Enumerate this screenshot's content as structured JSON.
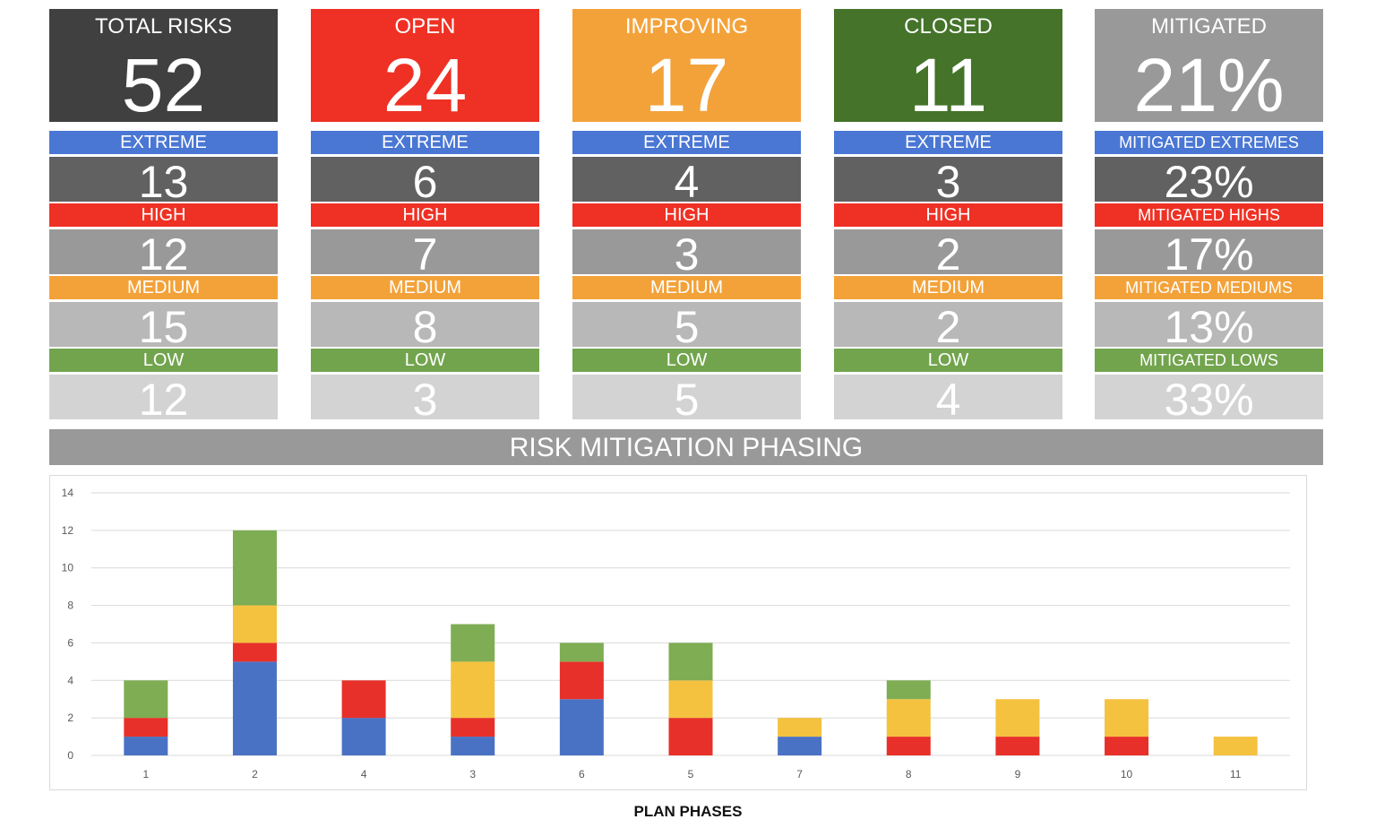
{
  "colors": {
    "dark": "#404040",
    "red": "#ee3124",
    "orange": "#f3a23a",
    "green": "#447329",
    "gray": "#999999",
    "blue": "#4a77d4",
    "band_red": "#ee3124",
    "band_orange": "#f3a23a",
    "band_green": "#72a44e",
    "num1": "#616161",
    "num2": "#999999",
    "num3": "#b8b8b8",
    "num4": "#d3d3d3"
  },
  "cards": [
    {
      "title": "TOTAL RISKS",
      "value": "52",
      "rows": [
        {
          "label": "EXTREME",
          "value": "13"
        },
        {
          "label": "HIGH",
          "value": "12"
        },
        {
          "label": "MEDIUM",
          "value": "15"
        },
        {
          "label": "LOW",
          "value": "12"
        }
      ]
    },
    {
      "title": "OPEN",
      "value": "24",
      "rows": [
        {
          "label": "EXTREME",
          "value": "6"
        },
        {
          "label": "HIGH",
          "value": "7"
        },
        {
          "label": "MEDIUM",
          "value": "8"
        },
        {
          "label": "LOW",
          "value": "3"
        }
      ]
    },
    {
      "title": "IMPROVING",
      "value": "17",
      "rows": [
        {
          "label": "EXTREME",
          "value": "4"
        },
        {
          "label": "HIGH",
          "value": "3"
        },
        {
          "label": "MEDIUM",
          "value": "5"
        },
        {
          "label": "LOW",
          "value": "5"
        }
      ]
    },
    {
      "title": "CLOSED",
      "value": "11",
      "rows": [
        {
          "label": "EXTREME",
          "value": "3"
        },
        {
          "label": "HIGH",
          "value": "2"
        },
        {
          "label": "MEDIUM",
          "value": "2"
        },
        {
          "label": "LOW",
          "value": "4"
        }
      ]
    },
    {
      "title": "MITIGATED",
      "value": "21%",
      "rows": [
        {
          "label": "MITIGATED EXTREMES",
          "value": "23%"
        },
        {
          "label": "MITIGATED HIGHS",
          "value": "17%"
        },
        {
          "label": "MITIGATED MEDIUMS",
          "value": "13%"
        },
        {
          "label": "MITIGATED LOWS",
          "value": "33%"
        }
      ]
    }
  ],
  "phasing_title": "RISK MITIGATION PHASING",
  "chart_data": {
    "type": "bar",
    "stacked": true,
    "categories": [
      "1",
      "2",
      "4",
      "3",
      "6",
      "5",
      "7",
      "8",
      "9",
      "10",
      "11"
    ],
    "series": [
      {
        "color": "#4a72c4",
        "values": [
          1,
          5,
          2,
          1,
          3,
          0,
          1,
          0,
          0,
          0,
          0
        ]
      },
      {
        "color": "#e8302a",
        "values": [
          1,
          1,
          2,
          1,
          2,
          2,
          0,
          1,
          1,
          1,
          0
        ]
      },
      {
        "color": "#f4c23f",
        "values": [
          0,
          2,
          0,
          3,
          0,
          2,
          1,
          2,
          2,
          2,
          1
        ]
      },
      {
        "color": "#7ead53",
        "values": [
          2,
          4,
          0,
          2,
          1,
          2,
          0,
          1,
          0,
          0,
          0
        ]
      }
    ],
    "ylim": [
      0,
      14
    ],
    "yticks": [
      0,
      2,
      4,
      6,
      8,
      10,
      12,
      14
    ],
    "grid": true,
    "xlabel": "PLAN PHASES",
    "ylabel": ""
  }
}
